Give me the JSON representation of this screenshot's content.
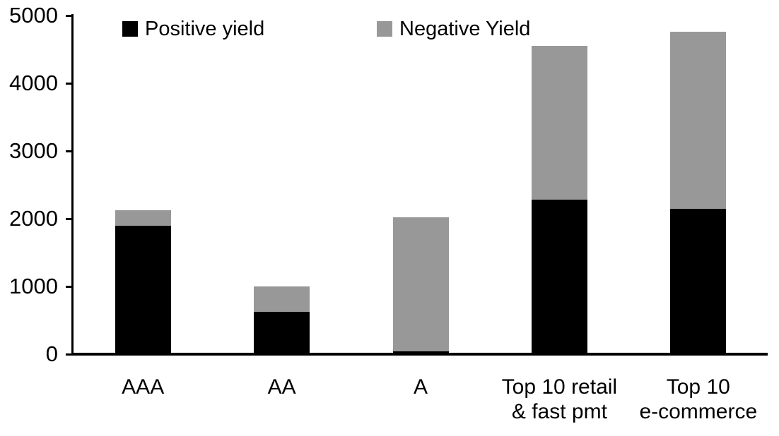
{
  "chart_data": {
    "type": "bar",
    "stacked": true,
    "title": "",
    "xlabel": "",
    "ylabel": "",
    "categories": [
      "AAA",
      "AA",
      "A",
      "Top 10 retail\n& fast pmt",
      "Top 10\ne-commerce"
    ],
    "series": [
      {
        "name": "Positive yield",
        "color": "#000000",
        "values": [
          1900,
          620,
          40,
          2280,
          2150
        ]
      },
      {
        "name": "Negative Yield",
        "color": "#989898",
        "values": [
          220,
          385,
          1980,
          2270,
          2610
        ]
      }
    ],
    "totals": [
      2120,
      1005,
      2020,
      4550,
      4760
    ],
    "ylim": [
      0,
      5000
    ],
    "yticks": [
      0,
      1000,
      2000,
      3000,
      4000,
      5000
    ],
    "grid": false,
    "legend_position": "top",
    "axis_color": "#000000",
    "background_color": "#ffffff"
  }
}
